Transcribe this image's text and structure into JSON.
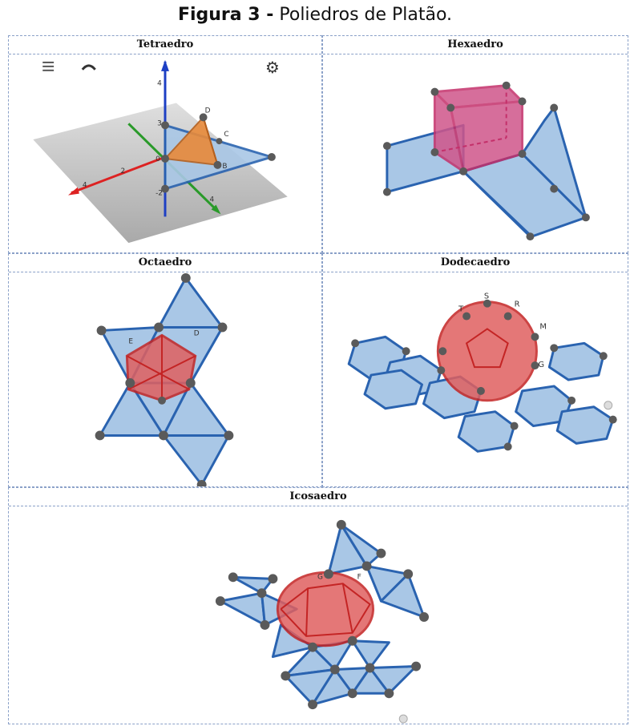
{
  "caption": {
    "label": "Figura 3 -",
    "text": "Poliedros de Platão."
  },
  "cells": {
    "tetra": {
      "title": "Tetraedro",
      "axis_labels": [
        "4",
        "3",
        "D",
        "C",
        "0",
        "-2",
        "4",
        "2",
        "4",
        "B"
      ]
    },
    "hexa": {
      "title": "Hexaedro"
    },
    "octa": {
      "title": "Octaedro",
      "vertex_labels": [
        "E",
        "D"
      ]
    },
    "dodeca": {
      "title": "Dodecaedro",
      "vertex_labels": [
        "T",
        "S",
        "R",
        "M",
        "G"
      ]
    },
    "icosa": {
      "title": "Icosaedro",
      "vertex_labels": [
        "G",
        "F"
      ]
    }
  },
  "colors": {
    "net_fill": "#a9c7e6",
    "net_edge": "#2a63b0",
    "vertex": "#5a5a5a",
    "solid_red": "#d23a3a",
    "solid_pink": "#c4306a",
    "solid_orange": "#e88a3a"
  }
}
